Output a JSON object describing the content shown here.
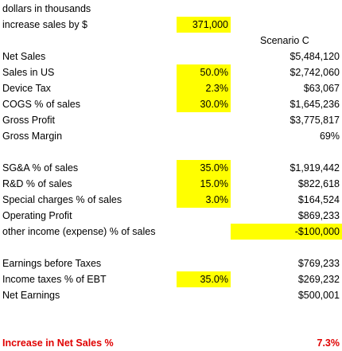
{
  "header": {
    "units": "dollars in thousands",
    "increase_label": "increase sales by $",
    "increase_value": "371,000",
    "scenario": "Scenario C"
  },
  "rows": [
    {
      "label": "Net Sales",
      "value": "$5,484,120"
    },
    {
      "label": "Sales in US",
      "input": "50.0%",
      "value": "$2,742,060"
    },
    {
      "label": "Device Tax",
      "input": "2.3%",
      "value": "$63,067"
    },
    {
      "label": "COGS % of sales",
      "input": "30.0%",
      "value": "$1,645,236"
    },
    {
      "label": "Gross Profit",
      "value": "$3,775,817"
    },
    {
      "label": "Gross Margin",
      "value": "69%"
    },
    {
      "label": "SG&A % of sales",
      "input": "35.0%",
      "value": "$1,919,442"
    },
    {
      "label": "R&D % of sales",
      "input": "15.0%",
      "value": "$822,618"
    },
    {
      "label": "Special charges % of sales",
      "input": "3.0%",
      "value": "$164,524"
    },
    {
      "label": "Operating Profit",
      "value": "$869,233"
    },
    {
      "label": "other income (expense) % of sales",
      "value": "-$100,000"
    },
    {
      "label": "Earnings before Taxes",
      "value": "$769,233"
    },
    {
      "label": "Income taxes % of EBT",
      "input": "35.0%",
      "value": "$269,232"
    },
    {
      "label": "Net Earnings",
      "value": "$500,001"
    }
  ],
  "footer": {
    "label": "Increase in Net Sales %",
    "value": "7.3%"
  }
}
